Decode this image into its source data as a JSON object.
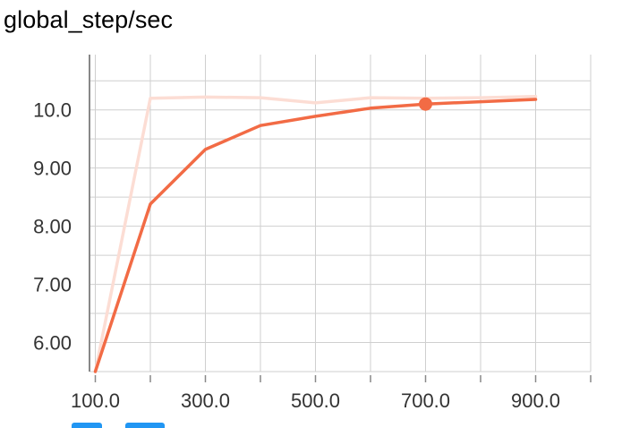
{
  "chart_data": {
    "type": "line",
    "title": "global_step/sec",
    "xlabel": "",
    "ylabel": "",
    "xlim": [
      0,
      1000
    ],
    "ylim": [
      5.5,
      10.95
    ],
    "x_ticks": [
      100,
      200,
      300,
      400,
      500,
      600,
      700,
      800,
      900,
      1000
    ],
    "x_tick_labels": [
      "100.0",
      "300.0",
      "500.0",
      "700.0",
      "900.0"
    ],
    "x_tick_label_values": [
      100,
      300,
      500,
      700,
      900
    ],
    "y_ticks": [
      6.0,
      7.0,
      8.0,
      9.0,
      10.0
    ],
    "y_tick_labels": [
      "6.00",
      "7.00",
      "8.00",
      "9.00",
      "10.0"
    ],
    "y_minor_gridlines": [
      5.5,
      6.5,
      7.5,
      8.5,
      9.5,
      10.5
    ],
    "grid": true,
    "series": [
      {
        "role": "raw",
        "color": "#fcddd4",
        "x": [
          100,
          200,
          300,
          400,
          500,
          600,
          700,
          800,
          900
        ],
        "y": [
          5.5,
          10.2,
          10.22,
          10.21,
          10.12,
          10.21,
          10.2,
          10.21,
          10.23
        ]
      },
      {
        "role": "smoothed",
        "color": "#f26b45",
        "x": [
          100,
          200,
          300,
          400,
          500,
          600,
          700,
          800,
          900
        ],
        "y": [
          5.5,
          8.38,
          9.32,
          9.73,
          9.89,
          10.03,
          10.1,
          10.14,
          10.18
        ]
      }
    ],
    "highlighted_point": {
      "x": 700,
      "y": 10.1,
      "color": "#f26b45"
    }
  },
  "footer": {
    "button_color": "#2196f3"
  }
}
